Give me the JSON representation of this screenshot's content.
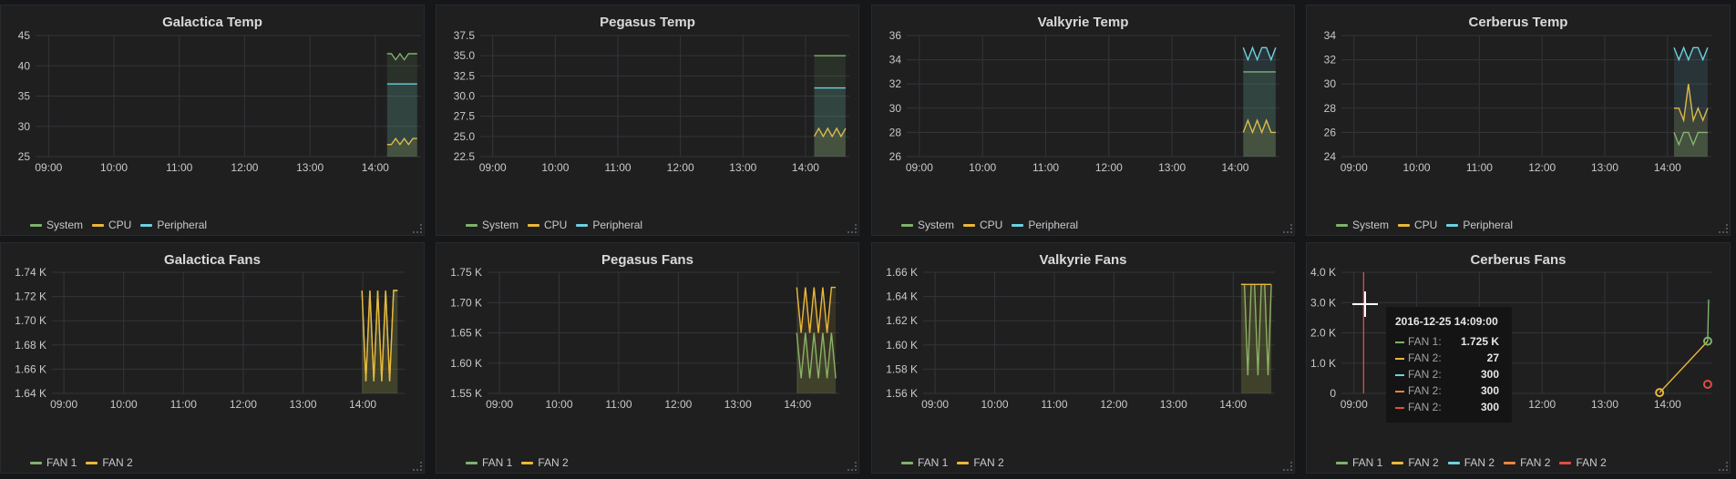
{
  "colors": {
    "green": "#7eb26d",
    "yellow": "#eab839",
    "cyan": "#6ed0e0",
    "orange": "#ef843c",
    "red": "#e24d42"
  },
  "tooltip": {
    "time": "2016-12-25 14:09:00",
    "rows": [
      {
        "label": "FAN 1:",
        "value": "1.725 K",
        "color": "#7eb26d"
      },
      {
        "label": "FAN 2:",
        "value": "27",
        "color": "#eab839"
      },
      {
        "label": "FAN 2:",
        "value": "300",
        "color": "#6ed0e0"
      },
      {
        "label": "FAN 2:",
        "value": "300",
        "color": "#ef843c"
      },
      {
        "label": "FAN 2:",
        "value": "300",
        "color": "#e24d42"
      }
    ]
  },
  "chart_data": [
    {
      "title": "Galactica Temp",
      "type": "line",
      "x_ticks": [
        "09:00",
        "10:00",
        "11:00",
        "12:00",
        "13:00",
        "14:00"
      ],
      "y_ticks": [
        "25",
        "30",
        "35",
        "40",
        "45"
      ],
      "ylim": [
        25,
        45
      ],
      "series": [
        {
          "name": "System",
          "color": "#7eb26d",
          "values": [
            42,
            42,
            41,
            42,
            41,
            42,
            42,
            42
          ]
        },
        {
          "name": "CPU",
          "color": "#eab839",
          "values": [
            27,
            27,
            28,
            27,
            28,
            27,
            28,
            28
          ]
        },
        {
          "name": "Peripheral",
          "color": "#6ed0e0",
          "values": [
            37,
            37,
            37,
            37,
            37,
            37,
            37,
            37
          ]
        }
      ]
    },
    {
      "title": "Pegasus Temp",
      "type": "line",
      "x_ticks": [
        "09:00",
        "10:00",
        "11:00",
        "12:00",
        "13:00",
        "14:00"
      ],
      "y_ticks": [
        "22.5",
        "25.0",
        "27.5",
        "30.0",
        "32.5",
        "35.0",
        "37.5"
      ],
      "ylim": [
        22.5,
        37.5
      ],
      "series": [
        {
          "name": "System",
          "color": "#7eb26d",
          "values": [
            35,
            35,
            35,
            35,
            35,
            35,
            35,
            35
          ]
        },
        {
          "name": "CPU",
          "color": "#eab839",
          "values": [
            25,
            26,
            25,
            26,
            25,
            26,
            25,
            26
          ]
        },
        {
          "name": "Peripheral",
          "color": "#6ed0e0",
          "values": [
            31,
            31,
            31,
            31,
            31,
            31,
            31,
            31
          ]
        }
      ]
    },
    {
      "title": "Valkyrie Temp",
      "type": "line",
      "x_ticks": [
        "09:00",
        "10:00",
        "11:00",
        "12:00",
        "13:00",
        "14:00"
      ],
      "y_ticks": [
        "26",
        "28",
        "30",
        "32",
        "34",
        "36"
      ],
      "ylim": [
        26,
        36
      ],
      "series": [
        {
          "name": "System",
          "color": "#7eb26d",
          "values": [
            33,
            33,
            33,
            33,
            33,
            33,
            33,
            33
          ]
        },
        {
          "name": "CPU",
          "color": "#eab839",
          "values": [
            28,
            29,
            28,
            29,
            28,
            29,
            28,
            28
          ]
        },
        {
          "name": "Peripheral",
          "color": "#6ed0e0",
          "values": [
            35,
            34,
            35,
            34,
            35,
            35,
            34,
            35
          ]
        }
      ]
    },
    {
      "title": "Cerberus Temp",
      "type": "line",
      "x_ticks": [
        "09:00",
        "10:00",
        "11:00",
        "12:00",
        "13:00",
        "14:00"
      ],
      "y_ticks": [
        "24",
        "26",
        "28",
        "30",
        "32",
        "34"
      ],
      "ylim": [
        24,
        34
      ],
      "series": [
        {
          "name": "System",
          "color": "#7eb26d",
          "values": [
            26,
            25,
            26,
            26,
            25,
            26,
            26,
            26
          ]
        },
        {
          "name": "CPU",
          "color": "#eab839",
          "values": [
            28,
            28,
            27,
            30,
            27,
            28,
            27,
            28
          ]
        },
        {
          "name": "Peripheral",
          "color": "#6ed0e0",
          "values": [
            33,
            32,
            33,
            32,
            33,
            33,
            32,
            33
          ]
        }
      ]
    },
    {
      "title": "Galactica Fans",
      "type": "line",
      "x_ticks": [
        "09:00",
        "10:00",
        "11:00",
        "12:00",
        "13:00",
        "14:00"
      ],
      "y_ticks": [
        "1.64 K",
        "1.66 K",
        "1.68 K",
        "1.70 K",
        "1.72 K",
        "1.74 K"
      ],
      "ylim": [
        1640,
        1740
      ],
      "series": [
        {
          "name": "FAN 1",
          "color": "#7eb26d",
          "values": [
            1725,
            1650,
            1725,
            1650,
            1725,
            1650,
            1725,
            1650,
            1725,
            1725
          ]
        },
        {
          "name": "FAN 2",
          "color": "#eab839",
          "values": [
            1725,
            1650,
            1725,
            1650,
            1725,
            1650,
            1725,
            1650,
            1725,
            1725
          ]
        }
      ]
    },
    {
      "title": "Pegasus Fans",
      "type": "line",
      "x_ticks": [
        "09:00",
        "10:00",
        "11:00",
        "12:00",
        "13:00",
        "14:00"
      ],
      "y_ticks": [
        "1.55 K",
        "1.60 K",
        "1.65 K",
        "1.70 K",
        "1.75 K"
      ],
      "ylim": [
        1550,
        1750
      ],
      "series": [
        {
          "name": "FAN 1",
          "color": "#7eb26d",
          "values": [
            1650,
            1575,
            1650,
            1575,
            1650,
            1575,
            1650,
            1575,
            1650,
            1575
          ]
        },
        {
          "name": "FAN 2",
          "color": "#eab839",
          "values": [
            1725,
            1650,
            1725,
            1650,
            1725,
            1650,
            1725,
            1650,
            1725,
            1725
          ]
        }
      ]
    },
    {
      "title": "Valkyrie Fans",
      "type": "line",
      "x_ticks": [
        "09:00",
        "10:00",
        "11:00",
        "12:00",
        "13:00",
        "14:00"
      ],
      "y_ticks": [
        "1.56 K",
        "1.58 K",
        "1.60 K",
        "1.62 K",
        "1.64 K",
        "1.66 K"
      ],
      "ylim": [
        1560,
        1660
      ],
      "series": [
        {
          "name": "FAN 1",
          "color": "#7eb26d",
          "values": [
            1650,
            1650,
            1575,
            1650,
            1650,
            1575,
            1650,
            1650,
            1575,
            1650
          ]
        },
        {
          "name": "FAN 2",
          "color": "#eab839",
          "values": [
            1650,
            1650,
            1650,
            1650,
            1650,
            1650,
            1650,
            1650,
            1650,
            1650
          ]
        }
      ]
    },
    {
      "title": "Cerberus Fans",
      "type": "line",
      "x_ticks": [
        "09:00",
        "10:00",
        "11:00",
        "12:00",
        "13:00",
        "14:00"
      ],
      "y_ticks": [
        "0",
        "1.0 K",
        "2.0 K",
        "3.0 K",
        "4.0 K"
      ],
      "ylim": [
        0,
        4000
      ],
      "series": [
        {
          "name": "FAN 1",
          "color": "#7eb26d",
          "values": [
            1725,
            3100
          ]
        },
        {
          "name": "FAN 2",
          "color": "#eab839",
          "values": [
            27,
            1725
          ]
        },
        {
          "name": "FAN 2",
          "color": "#6ed0e0",
          "values": [
            300,
            300
          ]
        },
        {
          "name": "FAN 2",
          "color": "#ef843c",
          "values": [
            300,
            300
          ]
        },
        {
          "name": "FAN 2",
          "color": "#e24d42",
          "values": [
            300,
            300
          ]
        }
      ]
    }
  ]
}
